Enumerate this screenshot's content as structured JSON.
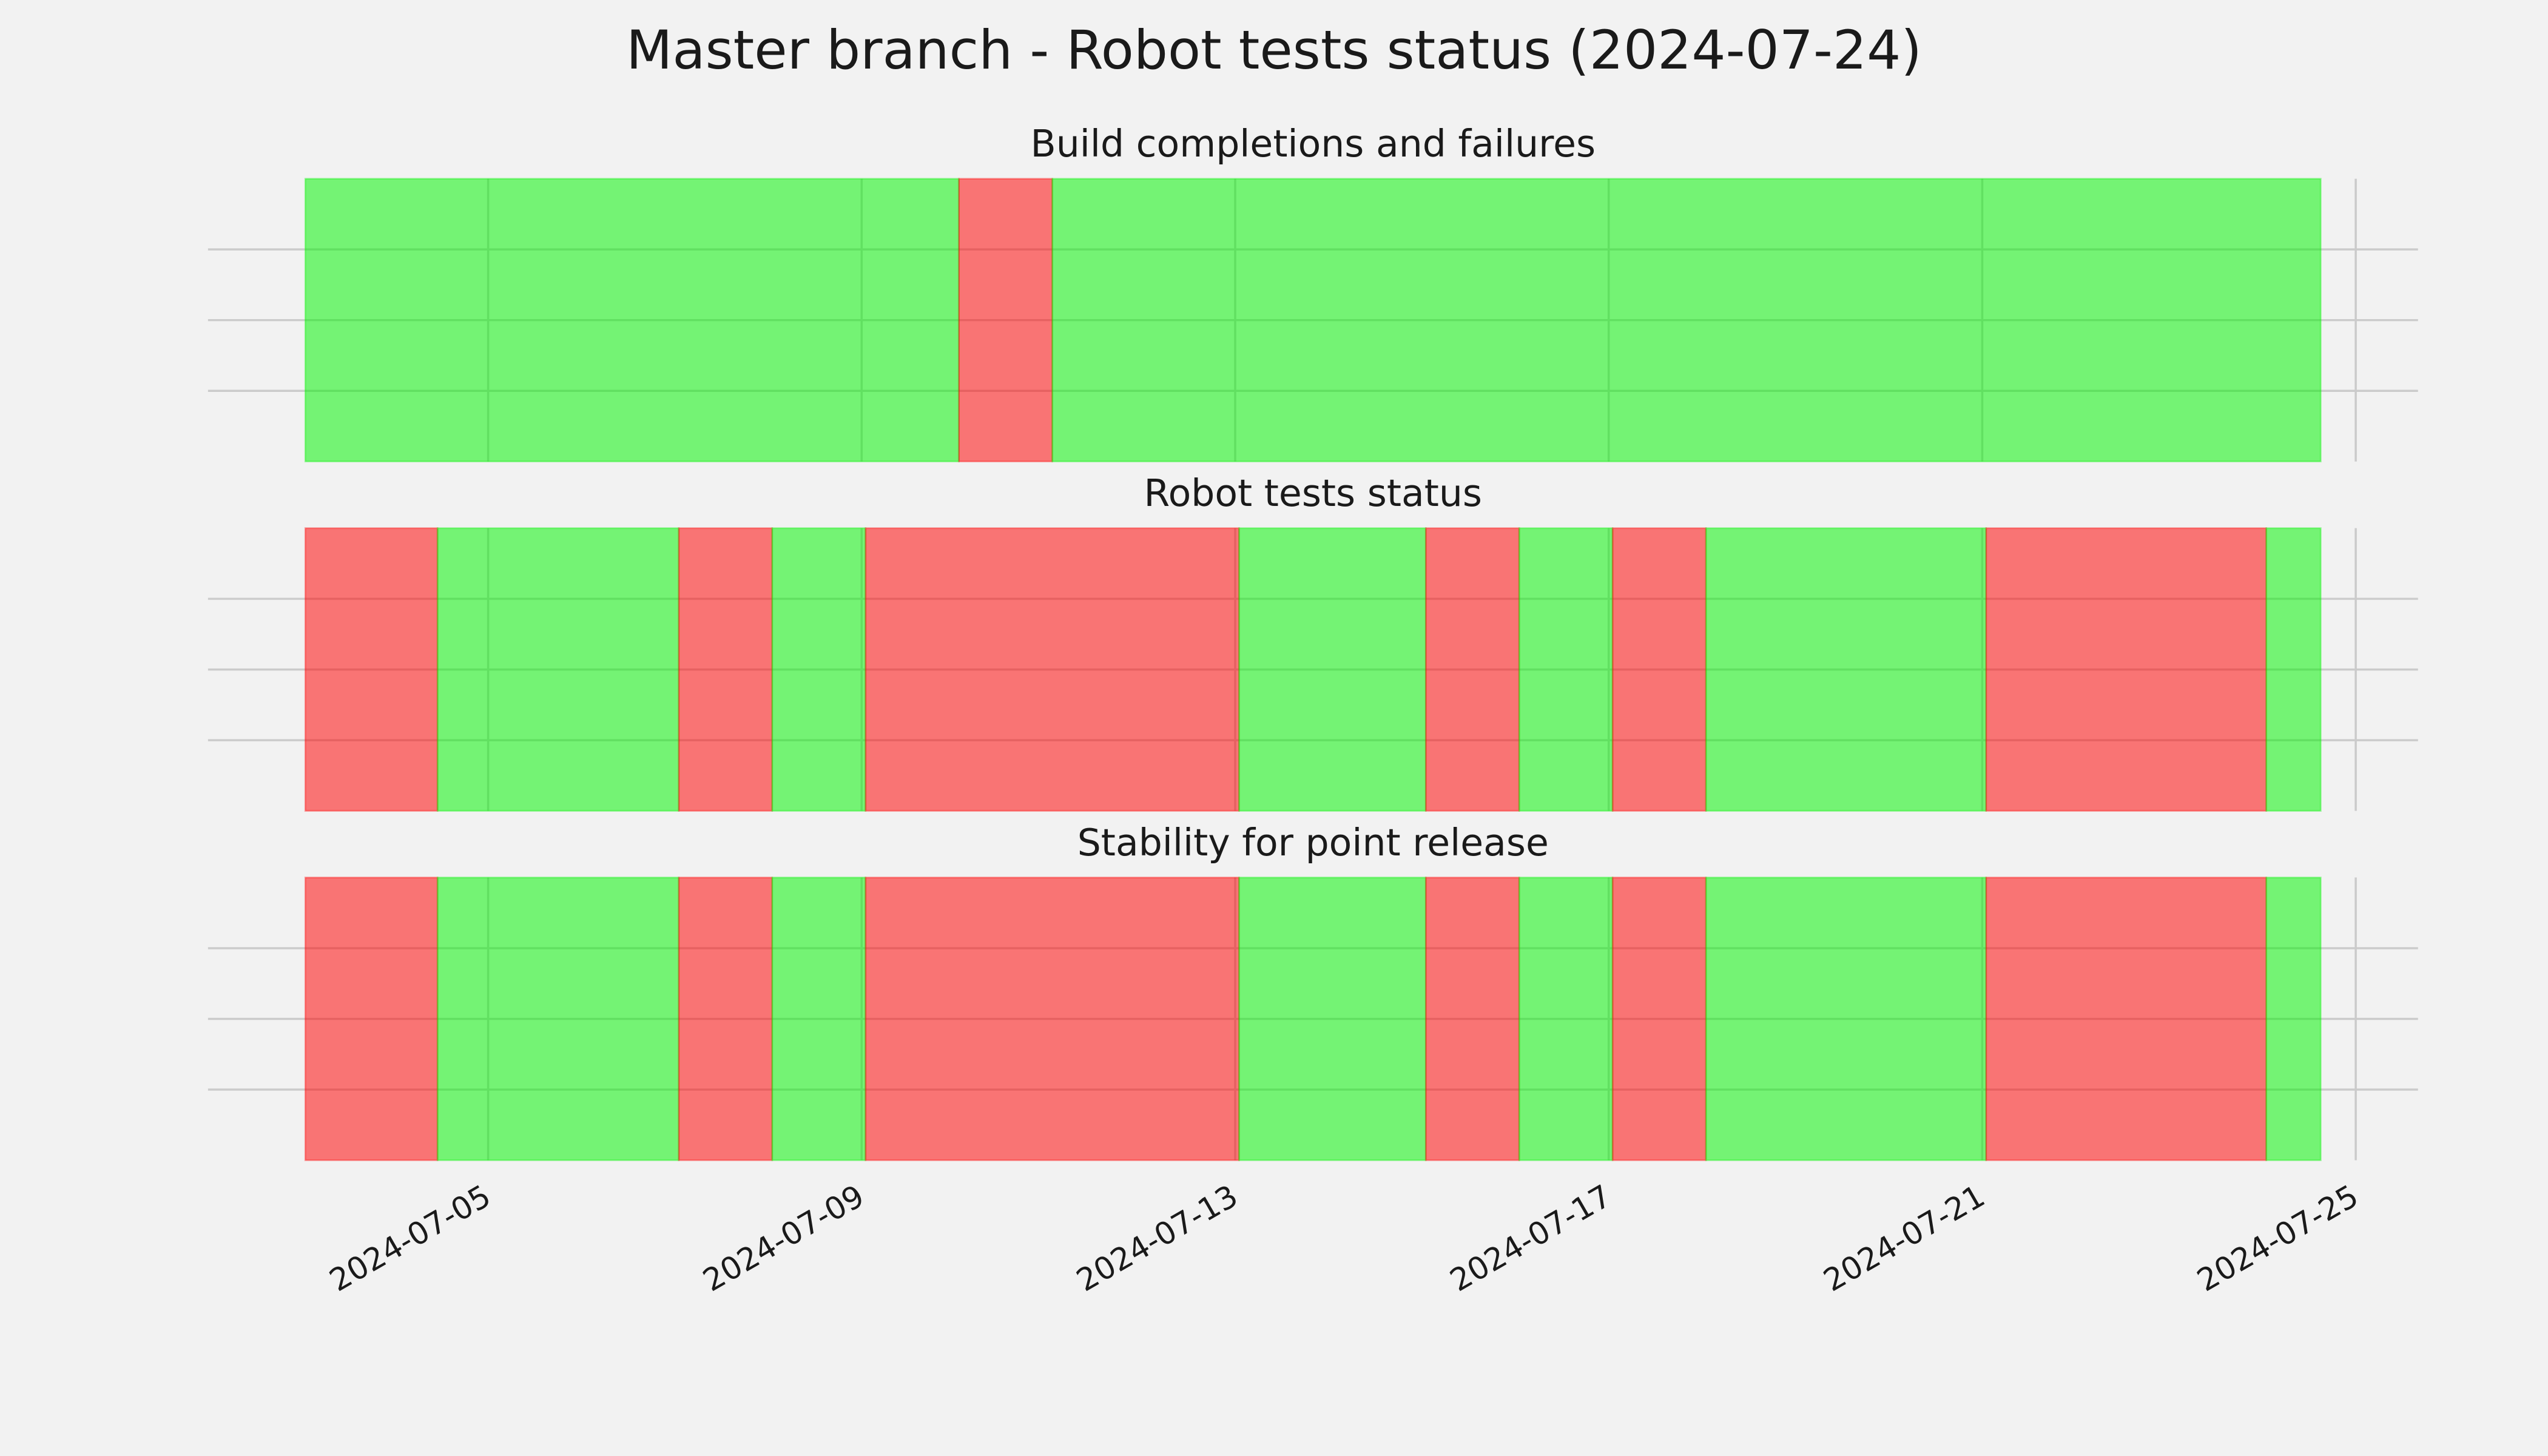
{
  "title": "Master branch - Robot tests status (2024-07-24)",
  "chart_data": {
    "type": "timeline",
    "xlim": [
      "2024-07-02T00:00",
      "2024-07-25T16:00"
    ],
    "xticks": [
      "2024-07-05",
      "2024-07-09",
      "2024-07-13",
      "2024-07-17",
      "2024-07-21",
      "2024-07-25"
    ],
    "ylim": [
      0,
      1
    ],
    "yticks": [
      0.25,
      0.5,
      0.75
    ],
    "grid": true,
    "panels": [
      {
        "title": "Build completions and failures",
        "edges": [
          "2024-07-03T01:00",
          "2024-07-10T01:00",
          "2024-07-11T01:00",
          "2024-07-24T15:00"
        ],
        "colors": [
          "#00f400",
          "#ff0000",
          "#00f400"
        ],
        "values": [
          1,
          1,
          1
        ]
      },
      {
        "title": "Robot tests status",
        "edges": [
          "2024-07-03T01:00",
          "2024-07-04T11:00",
          "2024-07-07T01:00",
          "2024-07-08T01:00",
          "2024-07-09T01:00",
          "2024-07-13T01:00",
          "2024-07-15T01:00",
          "2024-07-16T01:00",
          "2024-07-17T01:00",
          "2024-07-18T01:00",
          "2024-07-21T01:00",
          "2024-07-24T01:00",
          "2024-07-24T15:00"
        ],
        "colors": [
          "#ff0000",
          "#00f400",
          "#ff0000",
          "#00f400",
          "#ff0000",
          "#00f400",
          "#ff0000",
          "#00f400",
          "#ff0000",
          "#00f400",
          "#ff0000",
          "#00f400"
        ],
        "values": [
          1,
          1,
          1,
          1,
          1,
          1,
          1,
          1,
          1,
          1,
          1,
          1
        ]
      },
      {
        "title": "Stability for point release",
        "edges": [
          "2024-07-03T01:00",
          "2024-07-04T11:00",
          "2024-07-07T01:00",
          "2024-07-08T01:00",
          "2024-07-09T01:00",
          "2024-07-13T01:00",
          "2024-07-15T01:00",
          "2024-07-16T01:00",
          "2024-07-17T01:00",
          "2024-07-18T01:00",
          "2024-07-21T01:00",
          "2024-07-24T01:00",
          "2024-07-24T15:00"
        ],
        "colors": [
          "#ff0000",
          "#00f400",
          "#ff0000",
          "#00f400",
          "#ff0000",
          "#00f400",
          "#ff0000",
          "#00f400",
          "#ff0000",
          "#00f400",
          "#ff0000",
          "#00f400"
        ],
        "values": [
          1,
          1,
          1,
          1,
          1,
          1,
          1,
          1,
          1,
          1,
          1,
          1
        ]
      }
    ]
  }
}
